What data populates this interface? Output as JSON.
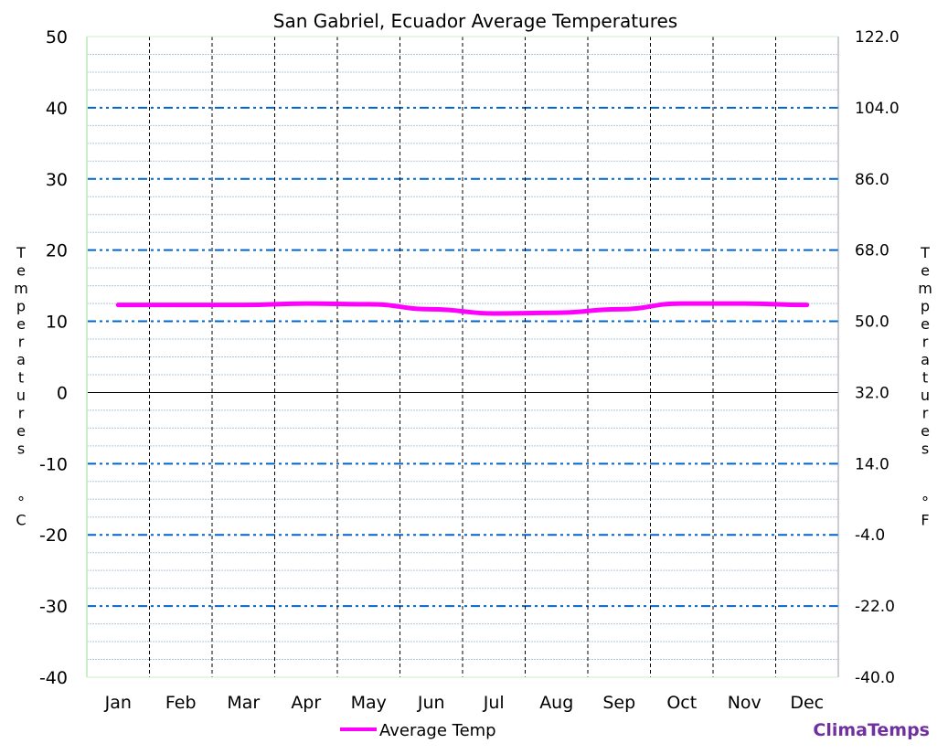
{
  "chart_data": {
    "type": "line",
    "title": "San Gabriel, Ecuador Average Temperatures",
    "categories": [
      "Jan",
      "Feb",
      "Mar",
      "Apr",
      "May",
      "Jun",
      "Jul",
      "Aug",
      "Sep",
      "Oct",
      "Nov",
      "Dec"
    ],
    "series": [
      {
        "name": "Average Temp",
        "color": "#ff00ff",
        "values": [
          12.3,
          12.3,
          12.3,
          12.5,
          12.4,
          11.7,
          11.1,
          11.2,
          11.7,
          12.5,
          12.5,
          12.3
        ]
      }
    ],
    "ylabel_left": "Temperatures (°C)",
    "ylabel_right": "Temperatures (°F)",
    "ylim": [
      -40,
      50
    ],
    "yticks_left": [
      "50",
      "40",
      "30",
      "20",
      "10",
      "0",
      "-10",
      "-20",
      "-30",
      "-40"
    ],
    "yticks_right": [
      "122.0",
      "104.0",
      "86.0",
      "68.0",
      "50.0",
      "32.0",
      "14.0",
      "-4.0",
      "-22.0",
      "-40.0"
    ],
    "grid": true,
    "legend": "bottom",
    "colors": {
      "major_grid": "#0066cc",
      "minor_grid": "#b0c8e0",
      "month_lines": "#000000"
    }
  },
  "brand": "ClimaTemps",
  "brand_color": "#7030a0"
}
